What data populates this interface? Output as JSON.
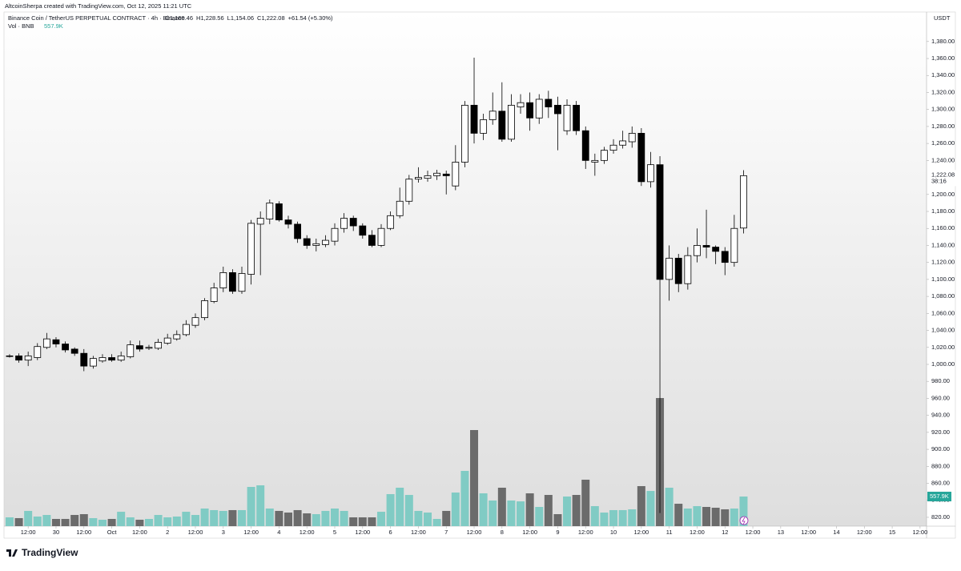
{
  "chart_data": {
    "type": "candlestick",
    "attribution": "AltcoinSherpa created with TradingView.com, Oct 12, 2025 11:21 UTC",
    "symbol": "Binance Coin / TetherUS PERPETUAL CONTRACT · 4h · Binance",
    "ohlc_legend": [
      "O1,160.46",
      "H1,228.56",
      "L1,154.06",
      "C1,222.08",
      "+61.54 (+5.30%)"
    ],
    "volume_legend": "Vol · BNB",
    "currency": "USDT",
    "countdown": "38:16",
    "logo": "TradingView",
    "last_price": {
      "value": 1222.08,
      "label": "1,222.08"
    },
    "open": [
      1010,
      1010,
      1005,
      1008,
      1020,
      1029,
      1024,
      1018,
      1013,
      998,
      1004,
      1008,
      1005,
      1009,
      1022,
      1019,
      1019,
      1025,
      1030,
      1035,
      1046,
      1055,
      1074,
      1090,
      1108,
      1086,
      1106,
      1165,
      1171,
      1189,
      1170,
      1165,
      1148,
      1140,
      1141,
      1145,
      1160,
      1172,
      1163,
      1152,
      1140,
      1160,
      1175,
      1192,
      1218,
      1219,
      1222,
      1224,
      1210,
      1238,
      1305,
      1272,
      1288,
      1298,
      1265,
      1303,
      1308,
      1290,
      1312,
      1305,
      1275,
      1305,
      1275,
      1238,
      1240,
      1252,
      1258,
      1262,
      1272,
      1215,
      1235,
      1100,
      1125,
      1095,
      1128,
      1140,
      1138,
      1133,
      1120,
      1160.46
    ],
    "high": [
      1012,
      1013,
      1015,
      1025,
      1037,
      1032,
      1027,
      1020,
      1018,
      1010,
      1012,
      1012,
      1015,
      1028,
      1028,
      1023,
      1030,
      1036,
      1040,
      1052,
      1060,
      1078,
      1096,
      1115,
      1112,
      1115,
      1170,
      1180,
      1194,
      1192,
      1175,
      1168,
      1152,
      1148,
      1152,
      1166,
      1178,
      1175,
      1166,
      1158,
      1165,
      1180,
      1208,
      1223,
      1232,
      1228,
      1229,
      1228,
      1258,
      1310,
      1361,
      1295,
      1320,
      1332,
      1318,
      1318,
      1320,
      1318,
      1322,
      1315,
      1312,
      1310,
      1280,
      1248,
      1256,
      1265,
      1275,
      1280,
      1278,
      1250,
      1245,
      1140,
      1130,
      1138,
      1160,
      1182,
      1140,
      1138,
      1176,
      1228.56
    ],
    "low": [
      1008,
      1002,
      998,
      1005,
      1018,
      1020,
      1014,
      1010,
      992,
      995,
      1002,
      1003,
      1003,
      1007,
      1015,
      1017,
      1017,
      1023,
      1028,
      1033,
      1043,
      1052,
      1072,
      1085,
      1083,
      1083,
      1094,
      1105,
      1165,
      1168,
      1160,
      1143,
      1136,
      1133,
      1138,
      1140,
      1155,
      1157,
      1148,
      1138,
      1138,
      1158,
      1172,
      1188,
      1214,
      1215,
      1217,
      1200,
      1205,
      1232,
      1260,
      1264,
      1282,
      1262,
      1262,
      1295,
      1275,
      1283,
      1290,
      1252,
      1270,
      1270,
      1230,
      1222,
      1236,
      1248,
      1254,
      1255,
      1210,
      1208,
      825,
      1075,
      1085,
      1088,
      1120,
      1125,
      1118,
      1105,
      1115,
      1154.06
    ],
    "close": [
      1010,
      1005,
      1010,
      1021,
      1030,
      1024,
      1017,
      1013,
      998,
      1007,
      1008,
      1005,
      1010,
      1023,
      1018,
      1020,
      1026,
      1031,
      1035,
      1047,
      1055,
      1075,
      1090,
      1108,
      1086,
      1107,
      1166,
      1172,
      1190,
      1170,
      1165,
      1148,
      1140,
      1142,
      1146,
      1160,
      1172,
      1163,
      1152,
      1140,
      1160,
      1175,
      1192,
      1218,
      1220,
      1222,
      1225,
      1222,
      1238,
      1305,
      1272,
      1288,
      1298,
      1265,
      1305,
      1308,
      1290,
      1312,
      1303,
      1295,
      1305,
      1275,
      1240,
      1240,
      1252,
      1258,
      1263,
      1272,
      1215,
      1235,
      1100,
      1125,
      1095,
      1128,
      1140,
      1138,
      1133,
      1120,
      1160,
      1222.08
    ],
    "volume": [
      166,
      151,
      287,
      181,
      211,
      136,
      136,
      211,
      226,
      151,
      121,
      136,
      271,
      166,
      121,
      136,
      211,
      166,
      181,
      271,
      211,
      332,
      302,
      287,
      302,
      302,
      739,
      769,
      332,
      287,
      256,
      302,
      241,
      226,
      287,
      332,
      287,
      166,
      166,
      166,
      271,
      603,
      724,
      588,
      287,
      256,
      136,
      287,
      633,
      1041,
      1810,
      618,
      483,
      724,
      483,
      467,
      618,
      362,
      588,
      226,
      558,
      588,
      875,
      377,
      256,
      302,
      302,
      317,
      754,
      663,
      2413,
      724,
      422,
      332,
      377,
      362,
      347,
      317,
      332,
      557.9
    ],
    "volume_labels": [
      null,
      null,
      null,
      null,
      null,
      null,
      null,
      null,
      null,
      null,
      null,
      null,
      null,
      null,
      null,
      null,
      null,
      null,
      null,
      null,
      null,
      null,
      null,
      null,
      null,
      null,
      null,
      null,
      null,
      null,
      null,
      null,
      null,
      null,
      null,
      null,
      null,
      null,
      null,
      null,
      null,
      null,
      null,
      null,
      null,
      null,
      null,
      null,
      null,
      null,
      null,
      null,
      null,
      null,
      null,
      null,
      null,
      null,
      null,
      null,
      null,
      null,
      null,
      null,
      null,
      null,
      null,
      null,
      null,
      null,
      null,
      null,
      null,
      null,
      null,
      null,
      null,
      null,
      null,
      "557.9K"
    ],
    "up_color": "#ffffff",
    "down_color": "#000000",
    "wick_color": "#000000",
    "up_volume_color": "#80cbc4",
    "down_volume_color": "#6b6b6b",
    "xlim": [
      -0.6,
      98.7
    ],
    "ylim": [
      809.6,
      1414.7
    ],
    "volume_ylim": [
      0,
      9683
    ],
    "yticks": [
      {
        "value": 820,
        "label": "820.00"
      },
      {
        "value": 840,
        "label": "840.00"
      },
      {
        "value": 860,
        "label": "860.00"
      },
      {
        "value": 880,
        "label": "880.00"
      },
      {
        "value": 900,
        "label": "900.00"
      },
      {
        "value": 920,
        "label": "920.00"
      },
      {
        "value": 940,
        "label": "940.00"
      },
      {
        "value": 960,
        "label": "960.00"
      },
      {
        "value": 980,
        "label": "980.00"
      },
      {
        "value": 1000,
        "label": "1,000.00"
      },
      {
        "value": 1020,
        "label": "1,020.00"
      },
      {
        "value": 1040,
        "label": "1,040.00"
      },
      {
        "value": 1060,
        "label": "1,060.00"
      },
      {
        "value": 1080,
        "label": "1,080.00"
      },
      {
        "value": 1100,
        "label": "1,100.00"
      },
      {
        "value": 1120,
        "label": "1,120.00"
      },
      {
        "value": 1140,
        "label": "1,140.00"
      },
      {
        "value": 1160,
        "label": "1,160.00"
      },
      {
        "value": 1180,
        "label": "1,180.00"
      },
      {
        "value": 1200,
        "label": "1,200.00"
      },
      {
        "value": 1240,
        "label": "1,240.00"
      },
      {
        "value": 1260,
        "label": "1,260.00"
      },
      {
        "value": 1280,
        "label": "1,280.00"
      },
      {
        "value": 1300,
        "label": "1,300.00"
      },
      {
        "value": 1320,
        "label": "1,320.00"
      },
      {
        "value": 1340,
        "label": "1,340.00"
      },
      {
        "value": 1360,
        "label": "1,360.00"
      },
      {
        "value": 1380,
        "label": "1,380.00"
      }
    ],
    "xticks": [
      {
        "value": 2,
        "label": "12:00"
      },
      {
        "value": 5,
        "label": "30"
      },
      {
        "value": 8,
        "label": "12:00"
      },
      {
        "value": 11,
        "label": "Oct"
      },
      {
        "value": 14,
        "label": "12:00"
      },
      {
        "value": 17,
        "label": "2"
      },
      {
        "value": 20,
        "label": "12:00"
      },
      {
        "value": 23,
        "label": "3"
      },
      {
        "value": 26,
        "label": "12:00"
      },
      {
        "value": 29,
        "label": "4"
      },
      {
        "value": 32,
        "label": "12:00"
      },
      {
        "value": 35,
        "label": "5"
      },
      {
        "value": 38,
        "label": "12:00"
      },
      {
        "value": 41,
        "label": "6"
      },
      {
        "value": 44,
        "label": "12:00"
      },
      {
        "value": 47,
        "label": "7"
      },
      {
        "value": 50,
        "label": "12:00"
      },
      {
        "value": 53,
        "label": "8"
      },
      {
        "value": 56,
        "label": "12:00"
      },
      {
        "value": 59,
        "label": "9"
      },
      {
        "value": 62,
        "label": "12:00"
      },
      {
        "value": 65,
        "label": "10"
      },
      {
        "value": 68,
        "label": "12:00"
      },
      {
        "value": 71,
        "label": "11"
      },
      {
        "value": 74,
        "label": "12:00"
      },
      {
        "value": 77,
        "label": "12"
      },
      {
        "value": 80,
        "label": "12:00"
      },
      {
        "value": 83,
        "label": "13"
      },
      {
        "value": 86,
        "label": "12:00"
      },
      {
        "value": 89,
        "label": "14"
      },
      {
        "value": 92,
        "label": "12:00"
      },
      {
        "value": 95,
        "label": "15"
      },
      {
        "value": 98,
        "label": "12:00"
      }
    ]
  }
}
